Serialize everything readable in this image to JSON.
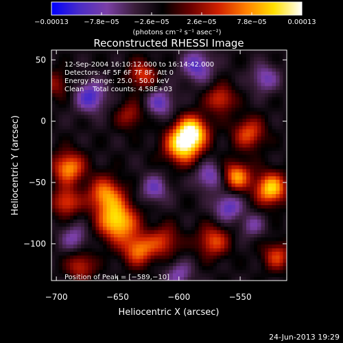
{
  "chart_data": {
    "type": "heatmap",
    "title": "Reconstructed RHESSI Image",
    "xlabel": "Heliocentric X (arcsec)",
    "ylabel": "Heliocentric Y (arcsec)",
    "xlim": [
      -704,
      -512
    ],
    "ylim": [
      -130,
      58
    ],
    "x_ticks": [
      {
        "value": -700,
        "label": "−700"
      },
      {
        "value": -650,
        "label": "−650"
      },
      {
        "value": -600,
        "label": "−600"
      },
      {
        "value": -550,
        "label": "−550"
      }
    ],
    "y_ticks": [
      {
        "value": 50,
        "label": "50"
      },
      {
        "value": 0,
        "label": "0"
      },
      {
        "value": -50,
        "label": "−50"
      },
      {
        "value": -100,
        "label": "−100"
      }
    ],
    "colorbar": {
      "range": [
        -0.00013,
        0.00013
      ],
      "tick_values": [
        -0.00013,
        -7.8e-05,
        -2.6e-05,
        2.6e-05,
        7.8e-05,
        0.00013
      ],
      "tick_labels": [
        "−0.00013",
        "−7.8e−05",
        "−2.6e−05",
        "2.6e−05",
        "7.8e−05",
        "0.00013"
      ],
      "unit_label": "(photons cm⁻² s⁻¹ asec⁻²)",
      "colors": [
        "#0000ff",
        "#4a2cc8",
        "#7b3fa6",
        "#3a1e3a",
        "#000000",
        "#6a0000",
        "#d02000",
        "#ff8000",
        "#ffe000",
        "#ffffff"
      ]
    },
    "annotations": [
      "12-Sep-2004 16:10:12.000 to 16:14:42.000",
      "Detectors: 4F 5F 6F 7F 8F, Att 0",
      "Energy Range: 25.0 - 50.0 keV",
      "Clean    Total counts: 4.58E+03"
    ],
    "peak_label": "Position of Peak = [−589,−10]",
    "peak": {
      "x": -589,
      "y": -10
    },
    "sources": [
      {
        "x": -597,
        "y": -20,
        "amp": 1.0,
        "s": 10
      },
      {
        "x": -589,
        "y": -8,
        "amp": 0.95,
        "s": 9
      },
      {
        "x": -650,
        "y": -82,
        "amp": 0.98,
        "s": 11
      },
      {
        "x": -660,
        "y": -60,
        "amp": 0.75,
        "s": 10
      },
      {
        "x": -633,
        "y": -105,
        "amp": 0.7,
        "s": 9
      },
      {
        "x": -690,
        "y": -38,
        "amp": 0.8,
        "s": 9
      },
      {
        "x": -692,
        "y": -66,
        "amp": 0.6,
        "s": 8
      },
      {
        "x": -525,
        "y": -55,
        "amp": 0.95,
        "s": 9
      },
      {
        "x": -553,
        "y": -45,
        "amp": 0.8,
        "s": 8
      },
      {
        "x": -566,
        "y": 18,
        "amp": 0.55,
        "s": 8
      },
      {
        "x": -543,
        "y": -10,
        "amp": 0.6,
        "s": 9
      },
      {
        "x": -630,
        "y": 38,
        "amp": 0.55,
        "s": 8
      },
      {
        "x": -572,
        "y": -98,
        "amp": 0.6,
        "s": 9
      },
      {
        "x": -612,
        "y": -98,
        "amp": 0.5,
        "s": 9
      },
      {
        "x": -680,
        "y": -118,
        "amp": 0.5,
        "s": 8
      },
      {
        "x": -520,
        "y": -110,
        "amp": 0.55,
        "s": 8
      },
      {
        "x": -700,
        "y": 30,
        "amp": 0.35,
        "s": 8
      },
      {
        "x": -640,
        "y": 5,
        "amp": 0.4,
        "s": 8
      },
      {
        "x": -672,
        "y": 20,
        "amp": -0.6,
        "s": 9
      },
      {
        "x": -615,
        "y": 15,
        "amp": -0.5,
        "s": 8
      },
      {
        "x": -585,
        "y": 45,
        "amp": -0.55,
        "s": 9
      },
      {
        "x": -530,
        "y": 35,
        "amp": -0.45,
        "s": 8
      },
      {
        "x": -560,
        "y": -70,
        "amp": -0.55,
        "s": 8
      },
      {
        "x": -575,
        "y": -45,
        "amp": -0.5,
        "s": 8
      },
      {
        "x": -620,
        "y": -55,
        "amp": -0.45,
        "s": 8
      },
      {
        "x": -685,
        "y": -95,
        "amp": -0.4,
        "s": 8
      },
      {
        "x": -600,
        "y": -125,
        "amp": -0.4,
        "s": 8
      },
      {
        "x": -540,
        "y": -85,
        "amp": -0.35,
        "s": 7
      }
    ]
  },
  "footer": {
    "timestamp": "24-Jun-2013 19:29"
  }
}
